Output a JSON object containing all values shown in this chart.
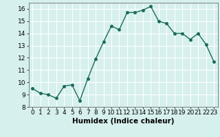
{
  "x": [
    0,
    1,
    2,
    3,
    4,
    5,
    6,
    7,
    8,
    9,
    10,
    11,
    12,
    13,
    14,
    15,
    16,
    17,
    18,
    19,
    20,
    21,
    22,
    23
  ],
  "y": [
    9.5,
    9.1,
    9.0,
    8.7,
    9.7,
    9.8,
    8.5,
    10.3,
    11.9,
    13.3,
    14.6,
    14.3,
    15.7,
    15.7,
    15.9,
    16.2,
    15.0,
    14.8,
    14.0,
    14.0,
    13.5,
    14.0,
    13.1,
    11.7
  ],
  "xlabel": "Humidex (Indice chaleur)",
  "ylim": [
    8,
    16.5
  ],
  "xlim": [
    -0.5,
    23.5
  ],
  "yticks": [
    8,
    9,
    10,
    11,
    12,
    13,
    14,
    15,
    16
  ],
  "xticks": [
    0,
    1,
    2,
    3,
    4,
    5,
    6,
    7,
    8,
    9,
    10,
    11,
    12,
    13,
    14,
    15,
    16,
    17,
    18,
    19,
    20,
    21,
    22,
    23
  ],
  "line_color": "#1a6b5a",
  "marker_color": "#1a6b5a",
  "bg_color": "#d6f0ee",
  "grid_color": "#ffffff",
  "tick_label_fontsize": 6.5,
  "xlabel_fontsize": 7.5,
  "spine_color": "#555555"
}
